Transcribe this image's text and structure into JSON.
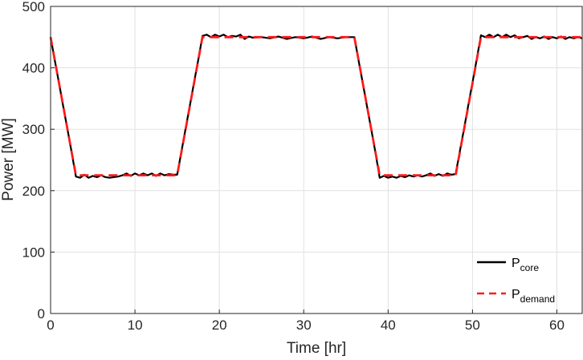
{
  "chart_data": {
    "type": "line",
    "xlabel": "Time [hr]",
    "ylabel": "Power [MW]",
    "xlim": [
      0,
      63
    ],
    "ylim": [
      0,
      500
    ],
    "xticks": [
      0,
      10,
      20,
      30,
      40,
      50,
      60
    ],
    "yticks": [
      0,
      100,
      200,
      300,
      400,
      500
    ],
    "grid": true,
    "legend_position": "bottom-right",
    "series": [
      {
        "name": "P",
        "subscript": "core",
        "color": "#000000",
        "style": "solid",
        "x": [
          0,
          0.5,
          1,
          1.5,
          2,
          2.5,
          3,
          3.5,
          4,
          4.5,
          5,
          5.5,
          6,
          6.5,
          7,
          7.5,
          8,
          8.5,
          9,
          9.5,
          10,
          10.5,
          11,
          11.5,
          12,
          12.5,
          13,
          13.5,
          14,
          14.5,
          15,
          15.5,
          16,
          16.5,
          17,
          17.5,
          18,
          18.5,
          19,
          19.5,
          20,
          20.5,
          21,
          21.5,
          22,
          22.5,
          23,
          23.5,
          24,
          25,
          26,
          27,
          28,
          29,
          30,
          31,
          32,
          33,
          34,
          35,
          36,
          36.5,
          37,
          37.5,
          38,
          38.5,
          39,
          39.5,
          40,
          40.5,
          41,
          41.5,
          42,
          42.5,
          43,
          43.5,
          44,
          44.5,
          45,
          45.5,
          46,
          46.5,
          47,
          47.5,
          48,
          48.5,
          49,
          49.5,
          50,
          50.5,
          51,
          51.5,
          52,
          52.5,
          53,
          53.5,
          54,
          54.5,
          55,
          55.5,
          56,
          56.5,
          57,
          57.5,
          58,
          58.5,
          59,
          59.5,
          60,
          60.5,
          61,
          61.5,
          62,
          62.5,
          63
        ],
        "y": [
          450,
          412,
          375,
          337,
          300,
          262,
          223,
          221,
          226,
          221,
          224,
          222,
          225,
          222,
          221,
          222,
          223,
          225,
          228,
          224,
          228,
          225,
          228,
          225,
          228,
          224,
          228,
          225,
          227,
          226,
          226,
          263,
          301,
          338,
          376,
          413,
          452,
          454,
          450,
          454,
          451,
          454,
          450,
          452,
          451,
          454,
          447,
          451,
          449,
          450,
          448,
          451,
          447,
          450,
          448,
          451,
          447,
          450,
          448,
          450,
          450,
          412,
          375,
          337,
          300,
          262,
          221,
          224,
          221,
          223,
          221,
          224,
          222,
          225,
          223,
          225,
          223,
          225,
          228,
          224,
          227,
          224,
          228,
          226,
          227,
          264,
          301,
          339,
          376,
          414,
          453,
          450,
          454,
          450,
          454,
          450,
          454,
          450,
          453,
          448,
          450,
          452,
          447,
          450,
          448,
          451,
          447,
          450,
          448,
          451,
          447,
          450,
          448,
          450,
          448
        ]
      },
      {
        "name": "P",
        "subscript": "demand",
        "color": "#ff1a1a",
        "style": "dashed",
        "x": [
          0,
          3,
          15,
          18,
          36,
          39,
          48,
          51,
          63
        ],
        "y": [
          450,
          225,
          225,
          450,
          450,
          225,
          225,
          450,
          450
        ]
      }
    ]
  }
}
